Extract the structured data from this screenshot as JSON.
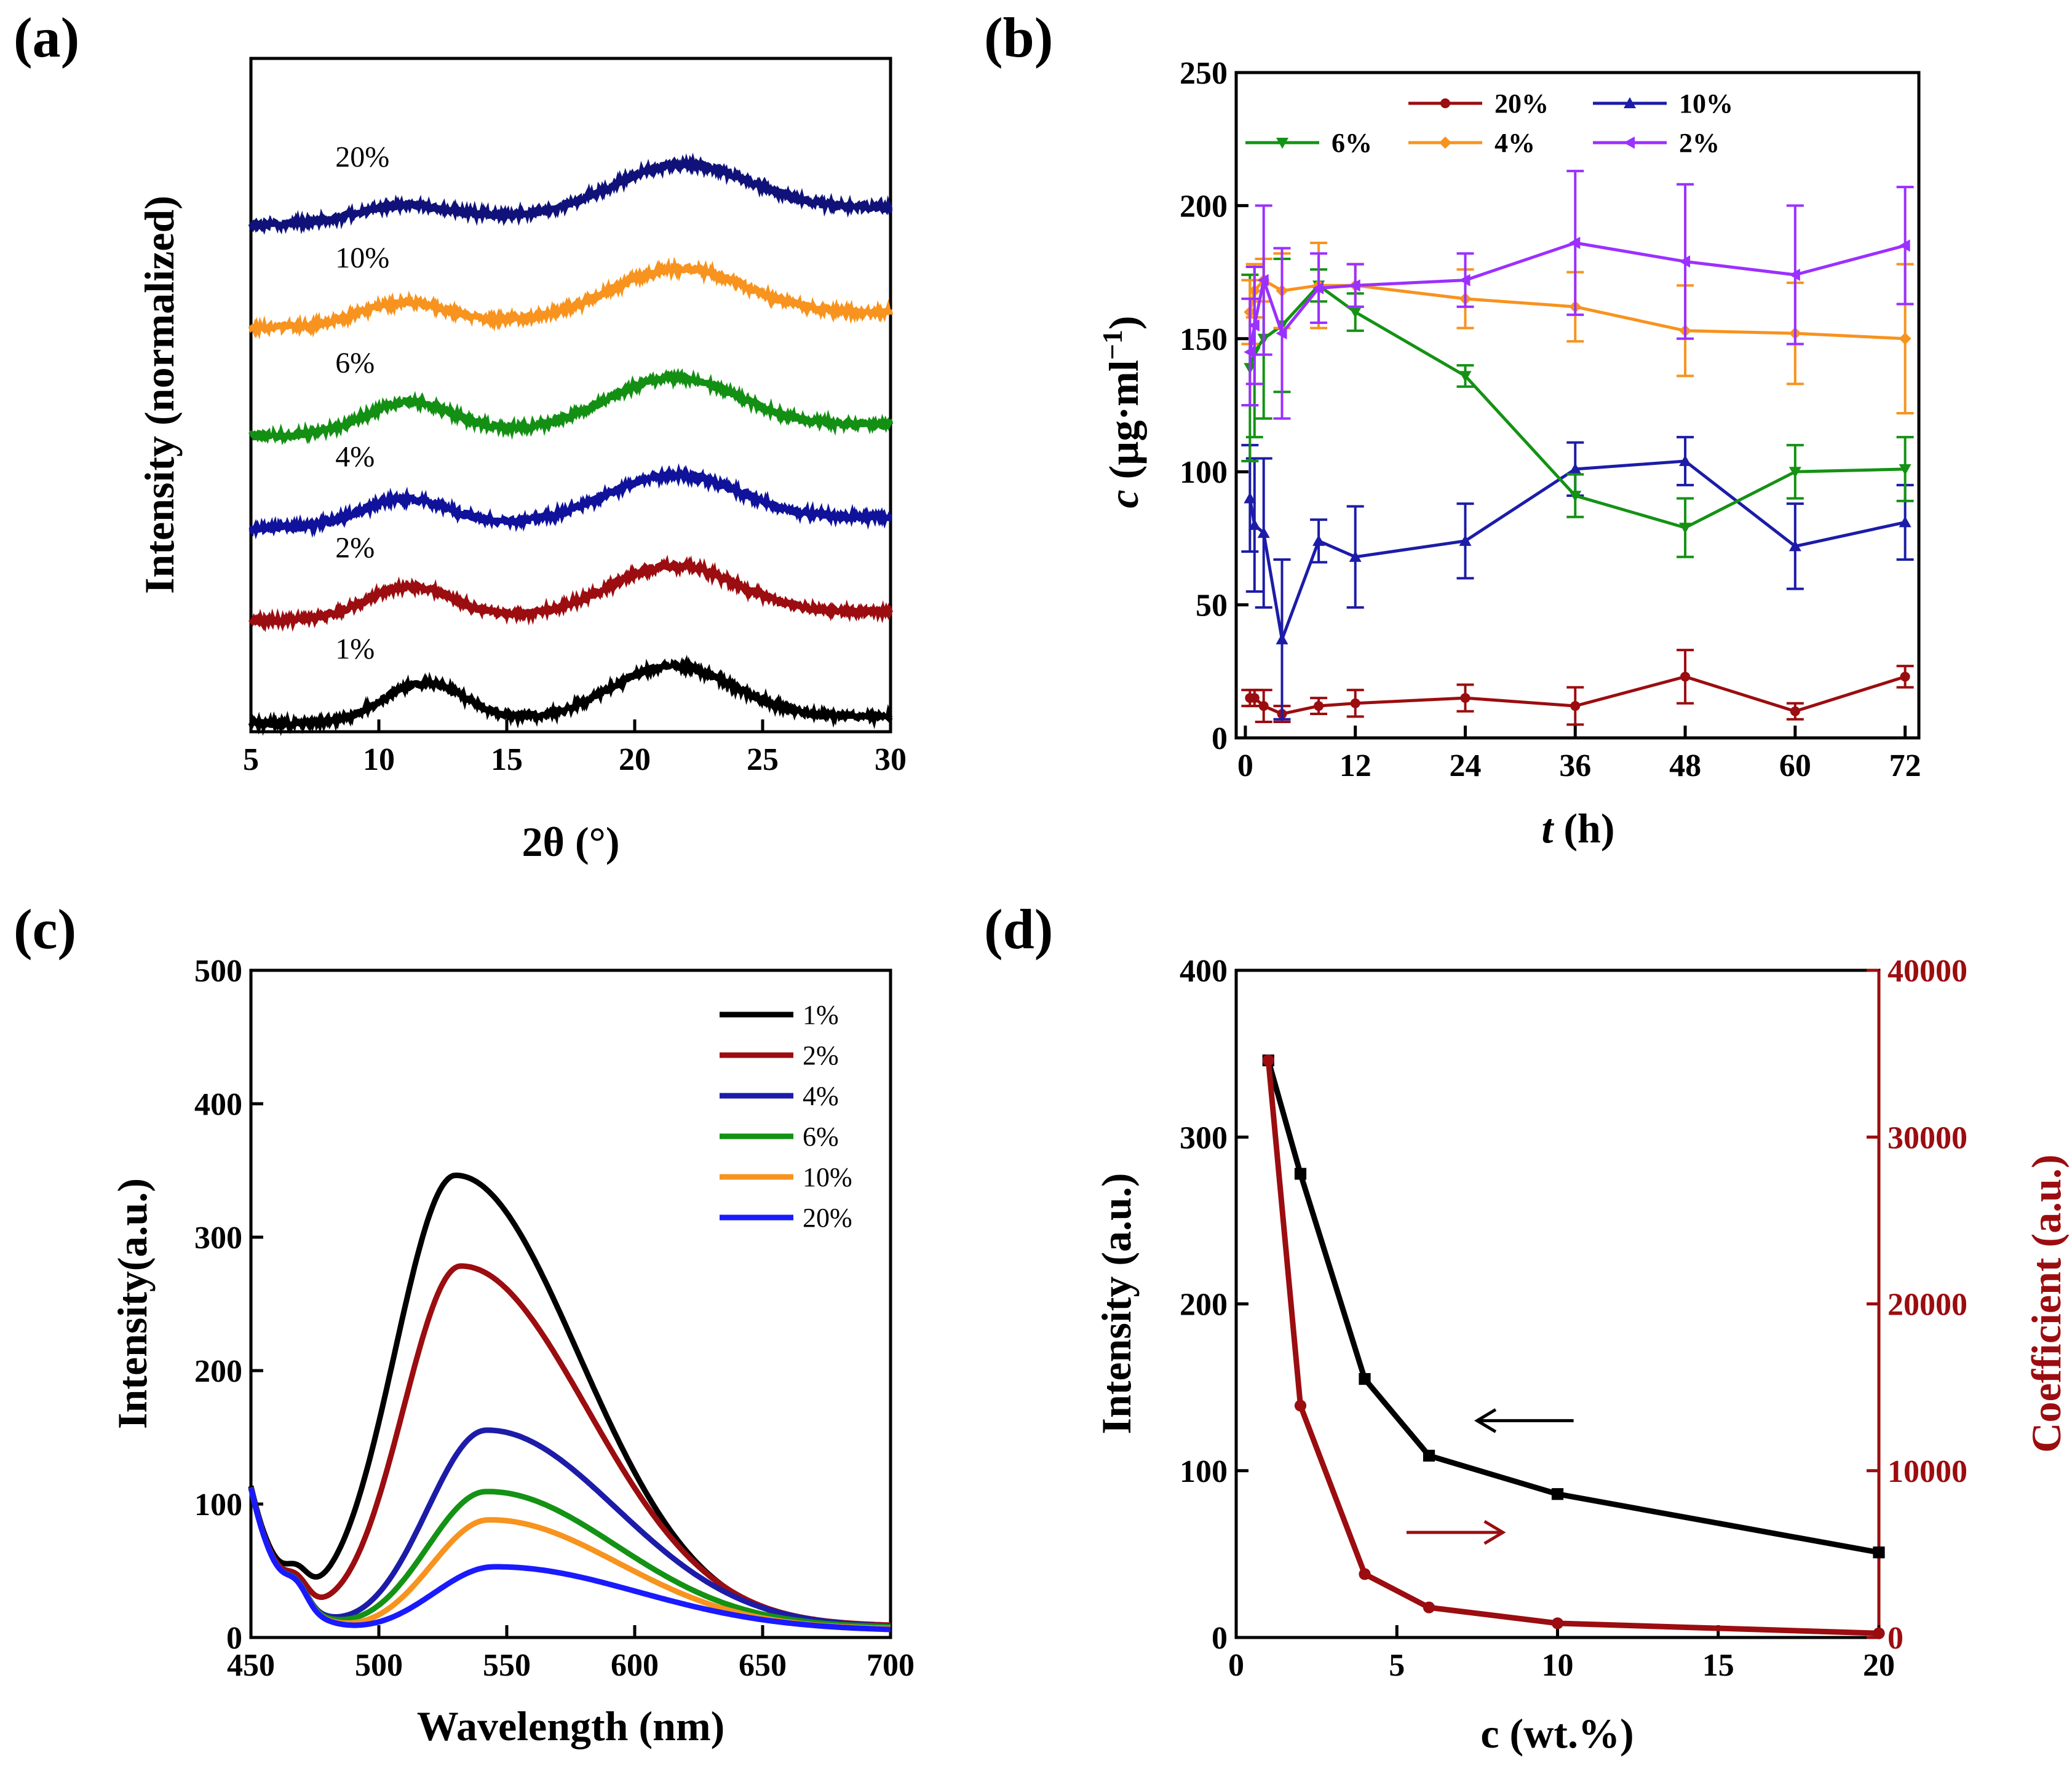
{
  "figure": {
    "panel_labels": [
      "(a)",
      "(b)",
      "(c)",
      "(d)"
    ]
  },
  "chart_data": [
    {
      "panel": "(a)",
      "type": "line",
      "xlabel": "2θ (°)",
      "ylabel": "Intensity (normalized)",
      "xlim": [
        5,
        30
      ],
      "xticks": [
        5,
        10,
        15,
        20,
        25,
        30
      ],
      "xtick_labels": [
        "5",
        "10",
        "15",
        "20",
        "25",
        "30"
      ],
      "yticks": [],
      "ylim": [
        0,
        6.5
      ],
      "grid": false,
      "series": [
        {
          "name": "1%",
          "color": "#000000",
          "offset": 0.0,
          "peaks": [
            {
              "x": 11.8,
              "h": 0.38,
              "w": 2.3
            },
            {
              "x": 21.5,
              "h": 0.52,
              "w": 3.4
            }
          ],
          "baseline": [
            0.02,
            0.08
          ]
        },
        {
          "name": "2%",
          "color": "#9b0d10",
          "offset": 1.0,
          "peaks": [
            {
              "x": 11.2,
              "h": 0.32,
              "w": 2.4
            },
            {
              "x": 21.5,
              "h": 0.48,
              "w": 3.5
            }
          ],
          "baseline": [
            0.02,
            0.1
          ]
        },
        {
          "name": "4%",
          "color": "#10129b",
          "offset": 1.9,
          "peaks": [
            {
              "x": 11.0,
              "h": 0.27,
              "w": 2.4
            },
            {
              "x": 21.5,
              "h": 0.45,
              "w": 3.6
            }
          ],
          "baseline": [
            0.02,
            0.12
          ]
        },
        {
          "name": "6%",
          "color": "#138f13",
          "offset": 2.8,
          "peaks": [
            {
              "x": 11.2,
              "h": 0.31,
              "w": 2.4
            },
            {
              "x": 21.5,
              "h": 0.5,
              "w": 3.6
            }
          ],
          "baseline": [
            0.02,
            0.12
          ]
        },
        {
          "name": "10%",
          "color": "#f7931e",
          "offset": 3.85,
          "peaks": [
            {
              "x": 11.0,
              "h": 0.22,
              "w": 2.4
            },
            {
              "x": 21.7,
              "h": 0.48,
              "w": 3.7
            }
          ],
          "baseline": [
            0.02,
            0.16
          ]
        },
        {
          "name": "20%",
          "color": "#10127a",
          "offset": 4.85,
          "peaks": [
            {
              "x": 11.0,
              "h": 0.16,
              "w": 2.6
            },
            {
              "x": 21.8,
              "h": 0.48,
              "w": 3.8
            }
          ],
          "baseline": [
            0.02,
            0.18
          ]
        }
      ]
    },
    {
      "panel": "(b)",
      "type": "line",
      "xlabel_italic": "t",
      "xlabel_rest": " (h)",
      "ylabel_italic": "c",
      "ylabel_rest": " (µg·ml",
      "ylabel_sup": "−1",
      "ylabel_close": ")",
      "xlim": [
        -1,
        73.5
      ],
      "ylim": [
        0,
        250
      ],
      "xticks": [
        0,
        12,
        24,
        36,
        48,
        60,
        72
      ],
      "xtick_labels": [
        "0",
        "12",
        "24",
        "36",
        "48",
        "60",
        "72"
      ],
      "yticks": [
        0,
        50,
        100,
        150,
        200,
        250
      ],
      "ytick_labels": [
        "0",
        "50",
        "100",
        "150",
        "200",
        "250"
      ],
      "legend": "top",
      "grid": false,
      "x": [
        0.5,
        1,
        2,
        4,
        8,
        12,
        24,
        36,
        48,
        60,
        72
      ],
      "series": [
        {
          "name": "20%",
          "color": "#9b0d10",
          "marker": "circle",
          "values": [
            15,
            15,
            12,
            9,
            12,
            13,
            15,
            12,
            23,
            10,
            23
          ],
          "errors": [
            3,
            3,
            6,
            3,
            3,
            5,
            5,
            7,
            10,
            3,
            4
          ]
        },
        {
          "name": "10%",
          "color": "#1c1ca8",
          "marker": "triangle-up",
          "values": [
            90,
            80,
            77,
            37,
            74,
            68,
            74,
            101,
            104,
            72,
            81
          ],
          "errors": [
            20,
            25,
            28,
            30,
            8,
            19,
            14,
            10,
            9,
            16,
            14
          ]
        },
        {
          "name": "6%",
          "color": "#149214",
          "marker": "triangle-down",
          "values": [
            139,
            145,
            150,
            155,
            170,
            160,
            136,
            91,
            79,
            100,
            101
          ],
          "errors": [
            35,
            32,
            30,
            25,
            6,
            7,
            4,
            8,
            11,
            10,
            12
          ]
        },
        {
          "name": "4%",
          "color": "#f7931e",
          "marker": "diamond",
          "values": [
            160,
            168,
            172,
            168,
            170,
            170,
            165,
            162,
            153,
            152,
            150
          ],
          "errors": [
            12,
            10,
            8,
            14,
            16,
            8,
            11,
            13,
            17,
            19,
            28
          ]
        },
        {
          "name": "2%",
          "color": "#9b30ff",
          "marker": "triangle-left",
          "values": [
            145,
            155,
            172,
            152,
            169,
            170,
            172,
            186,
            179,
            174,
            185
          ],
          "errors": [
            20,
            22,
            28,
            32,
            13,
            8,
            10,
            27,
            29,
            26,
            22
          ]
        }
      ]
    },
    {
      "panel": "(c)",
      "type": "line",
      "xlabel": "Wavelength (nm)",
      "ylabel": "Intensity(a.u.)",
      "xlim": [
        450,
        700
      ],
      "ylim": [
        0,
        500
      ],
      "xticks": [
        450,
        500,
        550,
        600,
        650,
        700
      ],
      "xtick_labels": [
        "450",
        "500",
        "550",
        "600",
        "650",
        "700"
      ],
      "yticks": [
        0,
        100,
        200,
        300,
        400,
        500
      ],
      "ytick_labels": [
        "0",
        "100",
        "200",
        "300",
        "400",
        "500"
      ],
      "legend": "top-right",
      "grid": false,
      "series": [
        {
          "name": "1%",
          "color": "#000000",
          "peak_x": 530,
          "peak_h": 345,
          "wl": 34,
          "wr": 68,
          "tail": 14
        },
        {
          "name": "2%",
          "color": "#9b0d10",
          "peak_x": 532,
          "peak_h": 277,
          "wl": 32,
          "wr": 70,
          "tail": 14
        },
        {
          "name": "4%",
          "color": "#1c1ca8",
          "peak_x": 542,
          "peak_h": 154,
          "wl": 33,
          "wr": 72,
          "tail": 12
        },
        {
          "name": "6%",
          "color": "#149214",
          "peak_x": 542,
          "peak_h": 108,
          "wl": 33,
          "wr": 72,
          "tail": 12
        },
        {
          "name": "10%",
          "color": "#f7931e",
          "peak_x": 543,
          "peak_h": 87,
          "wl": 32,
          "wr": 72,
          "tail": 10
        },
        {
          "name": "20%",
          "color": "#1a1aff",
          "peak_x": 545,
          "peak_h": 52,
          "wl": 34,
          "wr": 80,
          "tail": 8
        }
      ]
    },
    {
      "panel": "(d)",
      "type": "line",
      "xlabel": "c (wt.%)",
      "ylabel_left": "Intensity (a.u.)",
      "ylabel_right": "Coefficient (a.u.)",
      "xlim": [
        0,
        20
      ],
      "ylim_left": [
        0,
        400
      ],
      "ylim_right": [
        0,
        40000
      ],
      "xticks": [
        0,
        5,
        10,
        15,
        20
      ],
      "xtick_labels": [
        "0",
        "5",
        "10",
        "15",
        "20"
      ],
      "yticks_left": [
        0,
        100,
        200,
        300,
        400
      ],
      "ytick_labels_left": [
        "0",
        "100",
        "200",
        "300",
        "400"
      ],
      "yticks_right": [
        0,
        10000,
        20000,
        30000,
        40000
      ],
      "ytick_labels_right": [
        "0",
        "10000",
        "20000",
        "30000",
        "40000"
      ],
      "grid": false,
      "series": [
        {
          "name": "Intensity",
          "axis": "left",
          "color": "#000000",
          "marker": "square",
          "x": [
            1,
            2,
            4,
            6,
            10,
            20
          ],
          "values": [
            346,
            278,
            155,
            109,
            86,
            51
          ]
        },
        {
          "name": "Coefficient",
          "axis": "right",
          "color": "#9b0d10",
          "marker": "circle",
          "x": [
            1,
            2,
            4,
            6,
            10,
            20
          ],
          "values": [
            34600,
            13900,
            3800,
            1800,
            850,
            250
          ]
        }
      ],
      "annotations": [
        {
          "type": "arrow",
          "direction": "left",
          "color": "#000000",
          "x": [
            7.5,
            10.5
          ],
          "y_left": 130
        },
        {
          "type": "arrow",
          "direction": "right",
          "color": "#9b0d10",
          "x": [
            5.3,
            8.3
          ],
          "y_left": 63
        }
      ],
      "right_axis_color": "#9b0d10"
    }
  ]
}
